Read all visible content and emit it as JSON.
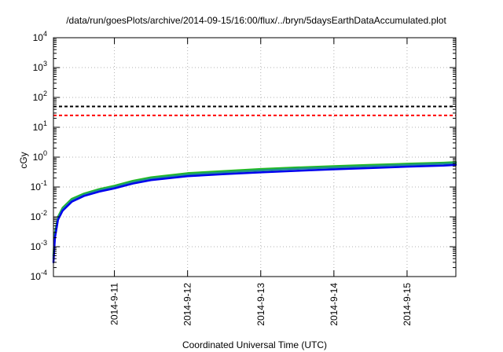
{
  "chart_data": {
    "type": "line",
    "title": "/data/run/goesPlots/archive/2014-09-15/16:00/flux/../bryn/5daysEarthDataAccumulated.plot",
    "xlabel": "Coordinated Universal Time (UTC)",
    "ylabel": "cGy",
    "y_scale": "log",
    "ylim": [
      0.0001,
      10000
    ],
    "xlim": [
      "2014-09-10 04:00",
      "2014-09-15 16:00"
    ],
    "y_ticks": [
      {
        "value": 0.0001,
        "base": "10",
        "exp": "-4"
      },
      {
        "value": 0.001,
        "base": "10",
        "exp": "-3"
      },
      {
        "value": 0.01,
        "base": "10",
        "exp": "-2"
      },
      {
        "value": 0.1,
        "base": "10",
        "exp": "-1"
      },
      {
        "value": 1,
        "base": "10",
        "exp": "0"
      },
      {
        "value": 10,
        "base": "10",
        "exp": "1"
      },
      {
        "value": 100,
        "base": "10",
        "exp": "2"
      },
      {
        "value": 1000,
        "base": "10",
        "exp": "3"
      },
      {
        "value": 10000,
        "base": "10",
        "exp": "4"
      }
    ],
    "x_ticks": [
      {
        "value": "2014-09-11 00:00",
        "label": "2014-9-11"
      },
      {
        "value": "2014-09-12 00:00",
        "label": "2014-9-12"
      },
      {
        "value": "2014-09-13 00:00",
        "label": "2014-9-13"
      },
      {
        "value": "2014-09-14 00:00",
        "label": "2014-9-14"
      },
      {
        "value": "2014-09-15 00:00",
        "label": "2014-9-15"
      }
    ],
    "grid": true,
    "legend": false,
    "thresholds": [
      {
        "value": 50,
        "color": "#000000",
        "style": "dashed"
      },
      {
        "value": 25,
        "color": "#ff0000",
        "style": "dashed"
      }
    ],
    "series": [
      {
        "color": "#22bb22",
        "points": [
          [
            "2014-09-10 04:00",
            0.0005
          ],
          [
            "2014-09-10 04:30",
            0.003
          ],
          [
            "2014-09-10 05:30",
            0.01
          ],
          [
            "2014-09-10 07:00",
            0.02
          ],
          [
            "2014-09-10 10:00",
            0.04
          ],
          [
            "2014-09-10 14:00",
            0.06
          ],
          [
            "2014-09-10 19:00",
            0.085
          ],
          [
            "2014-09-11 00:00",
            0.11
          ],
          [
            "2014-09-11 06:00",
            0.16
          ],
          [
            "2014-09-11 12:00",
            0.21
          ],
          [
            "2014-09-12 00:00",
            0.29
          ],
          [
            "2014-09-12 12:00",
            0.34
          ],
          [
            "2014-09-13 00:00",
            0.4
          ],
          [
            "2014-09-13 12:00",
            0.45
          ],
          [
            "2014-09-14 00:00",
            0.5
          ],
          [
            "2014-09-14 12:00",
            0.55
          ],
          [
            "2014-09-15 00:00",
            0.6
          ],
          [
            "2014-09-15 12:00",
            0.65
          ],
          [
            "2014-09-15 16:00",
            0.68
          ]
        ]
      },
      {
        "color": "#1f8f8f",
        "points": [
          [
            "2014-09-10 04:00",
            0.0004
          ],
          [
            "2014-09-10 04:30",
            0.0025
          ],
          [
            "2014-09-10 05:30",
            0.009
          ],
          [
            "2014-09-10 07:00",
            0.018
          ],
          [
            "2014-09-10 10:00",
            0.036
          ],
          [
            "2014-09-10 14:00",
            0.055
          ],
          [
            "2014-09-10 19:00",
            0.078
          ],
          [
            "2014-09-11 00:00",
            0.1
          ],
          [
            "2014-09-11 06:00",
            0.145
          ],
          [
            "2014-09-11 12:00",
            0.19
          ],
          [
            "2014-09-12 00:00",
            0.26
          ],
          [
            "2014-09-12 12:00",
            0.31
          ],
          [
            "2014-09-13 00:00",
            0.36
          ],
          [
            "2014-09-13 12:00",
            0.41
          ],
          [
            "2014-09-14 00:00",
            0.45
          ],
          [
            "2014-09-14 12:00",
            0.5
          ],
          [
            "2014-09-15 00:00",
            0.55
          ],
          [
            "2014-09-15 12:00",
            0.6
          ],
          [
            "2014-09-15 16:00",
            0.62
          ]
        ]
      },
      {
        "color": "#0000ee",
        "points": [
          [
            "2014-09-10 04:00",
            0.0003
          ],
          [
            "2014-09-10 04:30",
            0.002
          ],
          [
            "2014-09-10 05:30",
            0.008
          ],
          [
            "2014-09-10 07:00",
            0.016
          ],
          [
            "2014-09-10 10:00",
            0.032
          ],
          [
            "2014-09-10 14:00",
            0.05
          ],
          [
            "2014-09-10 19:00",
            0.07
          ],
          [
            "2014-09-11 00:00",
            0.09
          ],
          [
            "2014-09-11 06:00",
            0.13
          ],
          [
            "2014-09-11 12:00",
            0.17
          ],
          [
            "2014-09-12 00:00",
            0.23
          ],
          [
            "2014-09-12 12:00",
            0.27
          ],
          [
            "2014-09-13 00:00",
            0.31
          ],
          [
            "2014-09-13 12:00",
            0.35
          ],
          [
            "2014-09-14 00:00",
            0.39
          ],
          [
            "2014-09-14 12:00",
            0.43
          ],
          [
            "2014-09-15 00:00",
            0.48
          ],
          [
            "2014-09-15 12:00",
            0.52
          ],
          [
            "2014-09-15 16:00",
            0.55
          ]
        ]
      }
    ]
  }
}
